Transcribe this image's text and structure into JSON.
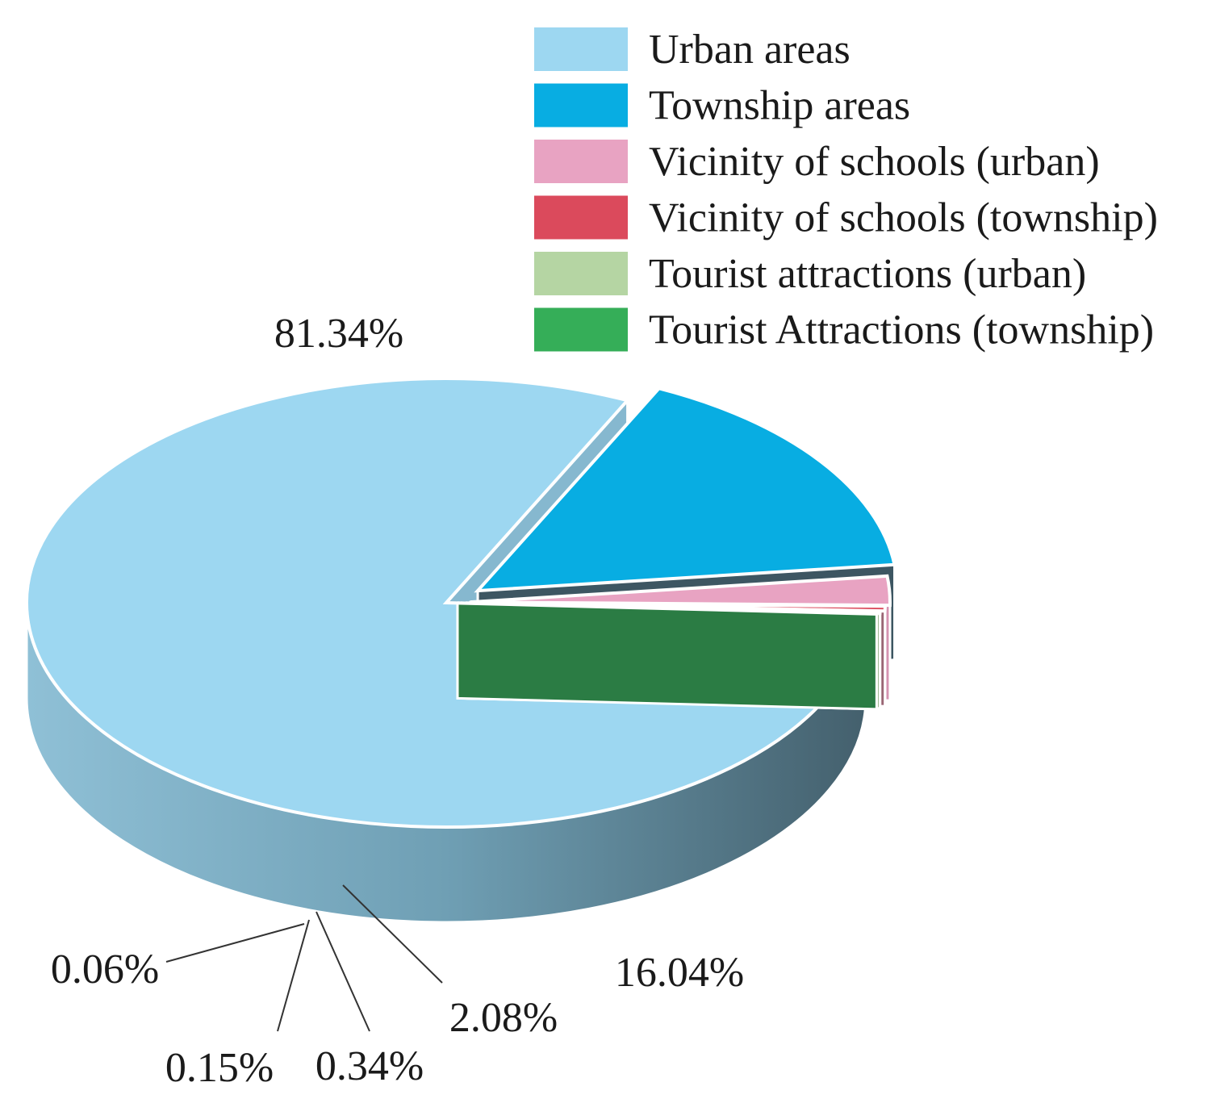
{
  "chart_data": {
    "type": "pie",
    "style": "3d-exploded",
    "title": "",
    "legend_position": "top-right",
    "slices": [
      {
        "name": "Urban areas",
        "value": 81.34,
        "label": "81.34%",
        "color": "#9dd7f1"
      },
      {
        "name": "Township areas",
        "value": 16.04,
        "label": "16.04%",
        "color": "#08ade2"
      },
      {
        "name": "Vicinity of schools (urban)",
        "value": 2.08,
        "label": "2.08%",
        "color": "#e8a3c2"
      },
      {
        "name": "Vicinity of schools (township)",
        "value": 0.34,
        "label": "0.34%",
        "color": "#db4a5c"
      },
      {
        "name": "Tourist attractions (urban)",
        "value": 0.15,
        "label": "0.15%",
        "color": "#b5d5a3"
      },
      {
        "name": "Tourist Attractions (township)",
        "value": 0.06,
        "label": "0.06%",
        "color": "#35ae58"
      }
    ]
  }
}
